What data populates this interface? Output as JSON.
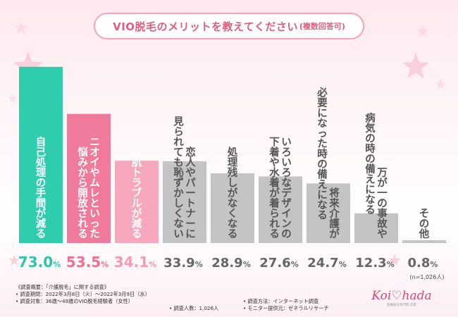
{
  "title": {
    "main": "VIO脱毛のメリットを教えてください",
    "sub": "(複数回答可)"
  },
  "chart_data": {
    "type": "bar",
    "categories": [
      "自己処理の手間が減る",
      "ニオイやムレといった 悩みから開放される",
      "肌トラブルが減る",
      "恋人やパートナーに 見られても恥ずかしくない",
      "処理残しがなくなる",
      "いろいろなデザインの 下着や水着が着られる",
      "必要になった時の備えになる 将来介護が",
      "病気の時の備えになる 万が一の事故や",
      "その他"
    ],
    "label_lines": [
      [
        "自己処理の手間が減る"
      ],
      [
        "ニオイやムレといった",
        "悩みから開放される"
      ],
      [
        "肌トラブルが減る"
      ],
      [
        "恋人やパートナーに",
        "見られても恥ずかしくない"
      ],
      [
        "処理残しがなくなる"
      ],
      [
        "いろいろなデザインの",
        "下着や水着が着られる"
      ],
      [
        "将来介護が",
        "必要になった時の備えになる"
      ],
      [
        "万が一の事故や",
        "病気の時の備えになる"
      ],
      [
        "その他"
      ]
    ],
    "values": [
      73.0,
      53.5,
      34.1,
      33.9,
      28.9,
      27.6,
      24.7,
      12.3,
      0.8
    ],
    "value_labels": [
      "73.0",
      "53.5",
      "34.1",
      "33.9",
      "28.9",
      "27.6",
      "24.7",
      "12.3",
      "0.8"
    ],
    "unit": "%",
    "colors": [
      "#2ecdae",
      "#f07a9b",
      "#f7a8bc",
      "#c4c4c4",
      "#c4c4c4",
      "#c4c4c4",
      "#c4c4c4",
      "#c4c4c4",
      "#c4c4c4"
    ],
    "value_colors": [
      "#2cc6a6",
      "#ee6f92",
      "#f49ab2",
      "#666666",
      "#666666",
      "#666666",
      "#666666",
      "#666666",
      "#666666"
    ],
    "label_colors": [
      "#ffffff",
      "#ffffff",
      "#ffffff",
      "#555555",
      "#555555",
      "#555555",
      "#555555",
      "#555555",
      "#555555"
    ],
    "n_note": "(n=1,026人)",
    "ylim": [
      0,
      75
    ]
  },
  "footer": {
    "line1": "《調査概要：「介護脱毛」に関する調査》",
    "line2": "• 調査期間：2022年3月8日（火）〜2022年3月9日（水）",
    "line3": "• 調査対象：36歳〜49歳のVIO脱毛経験者（女性）",
    "people": "• 調査人数：1,026人",
    "method": "• 調査方法：インターネット調査",
    "provider": "• モニター提供元：ゼネラルリサーチ"
  },
  "logo": {
    "text": "Koi♡hada",
    "sub": "医療脱毛専門院 恋肌"
  }
}
